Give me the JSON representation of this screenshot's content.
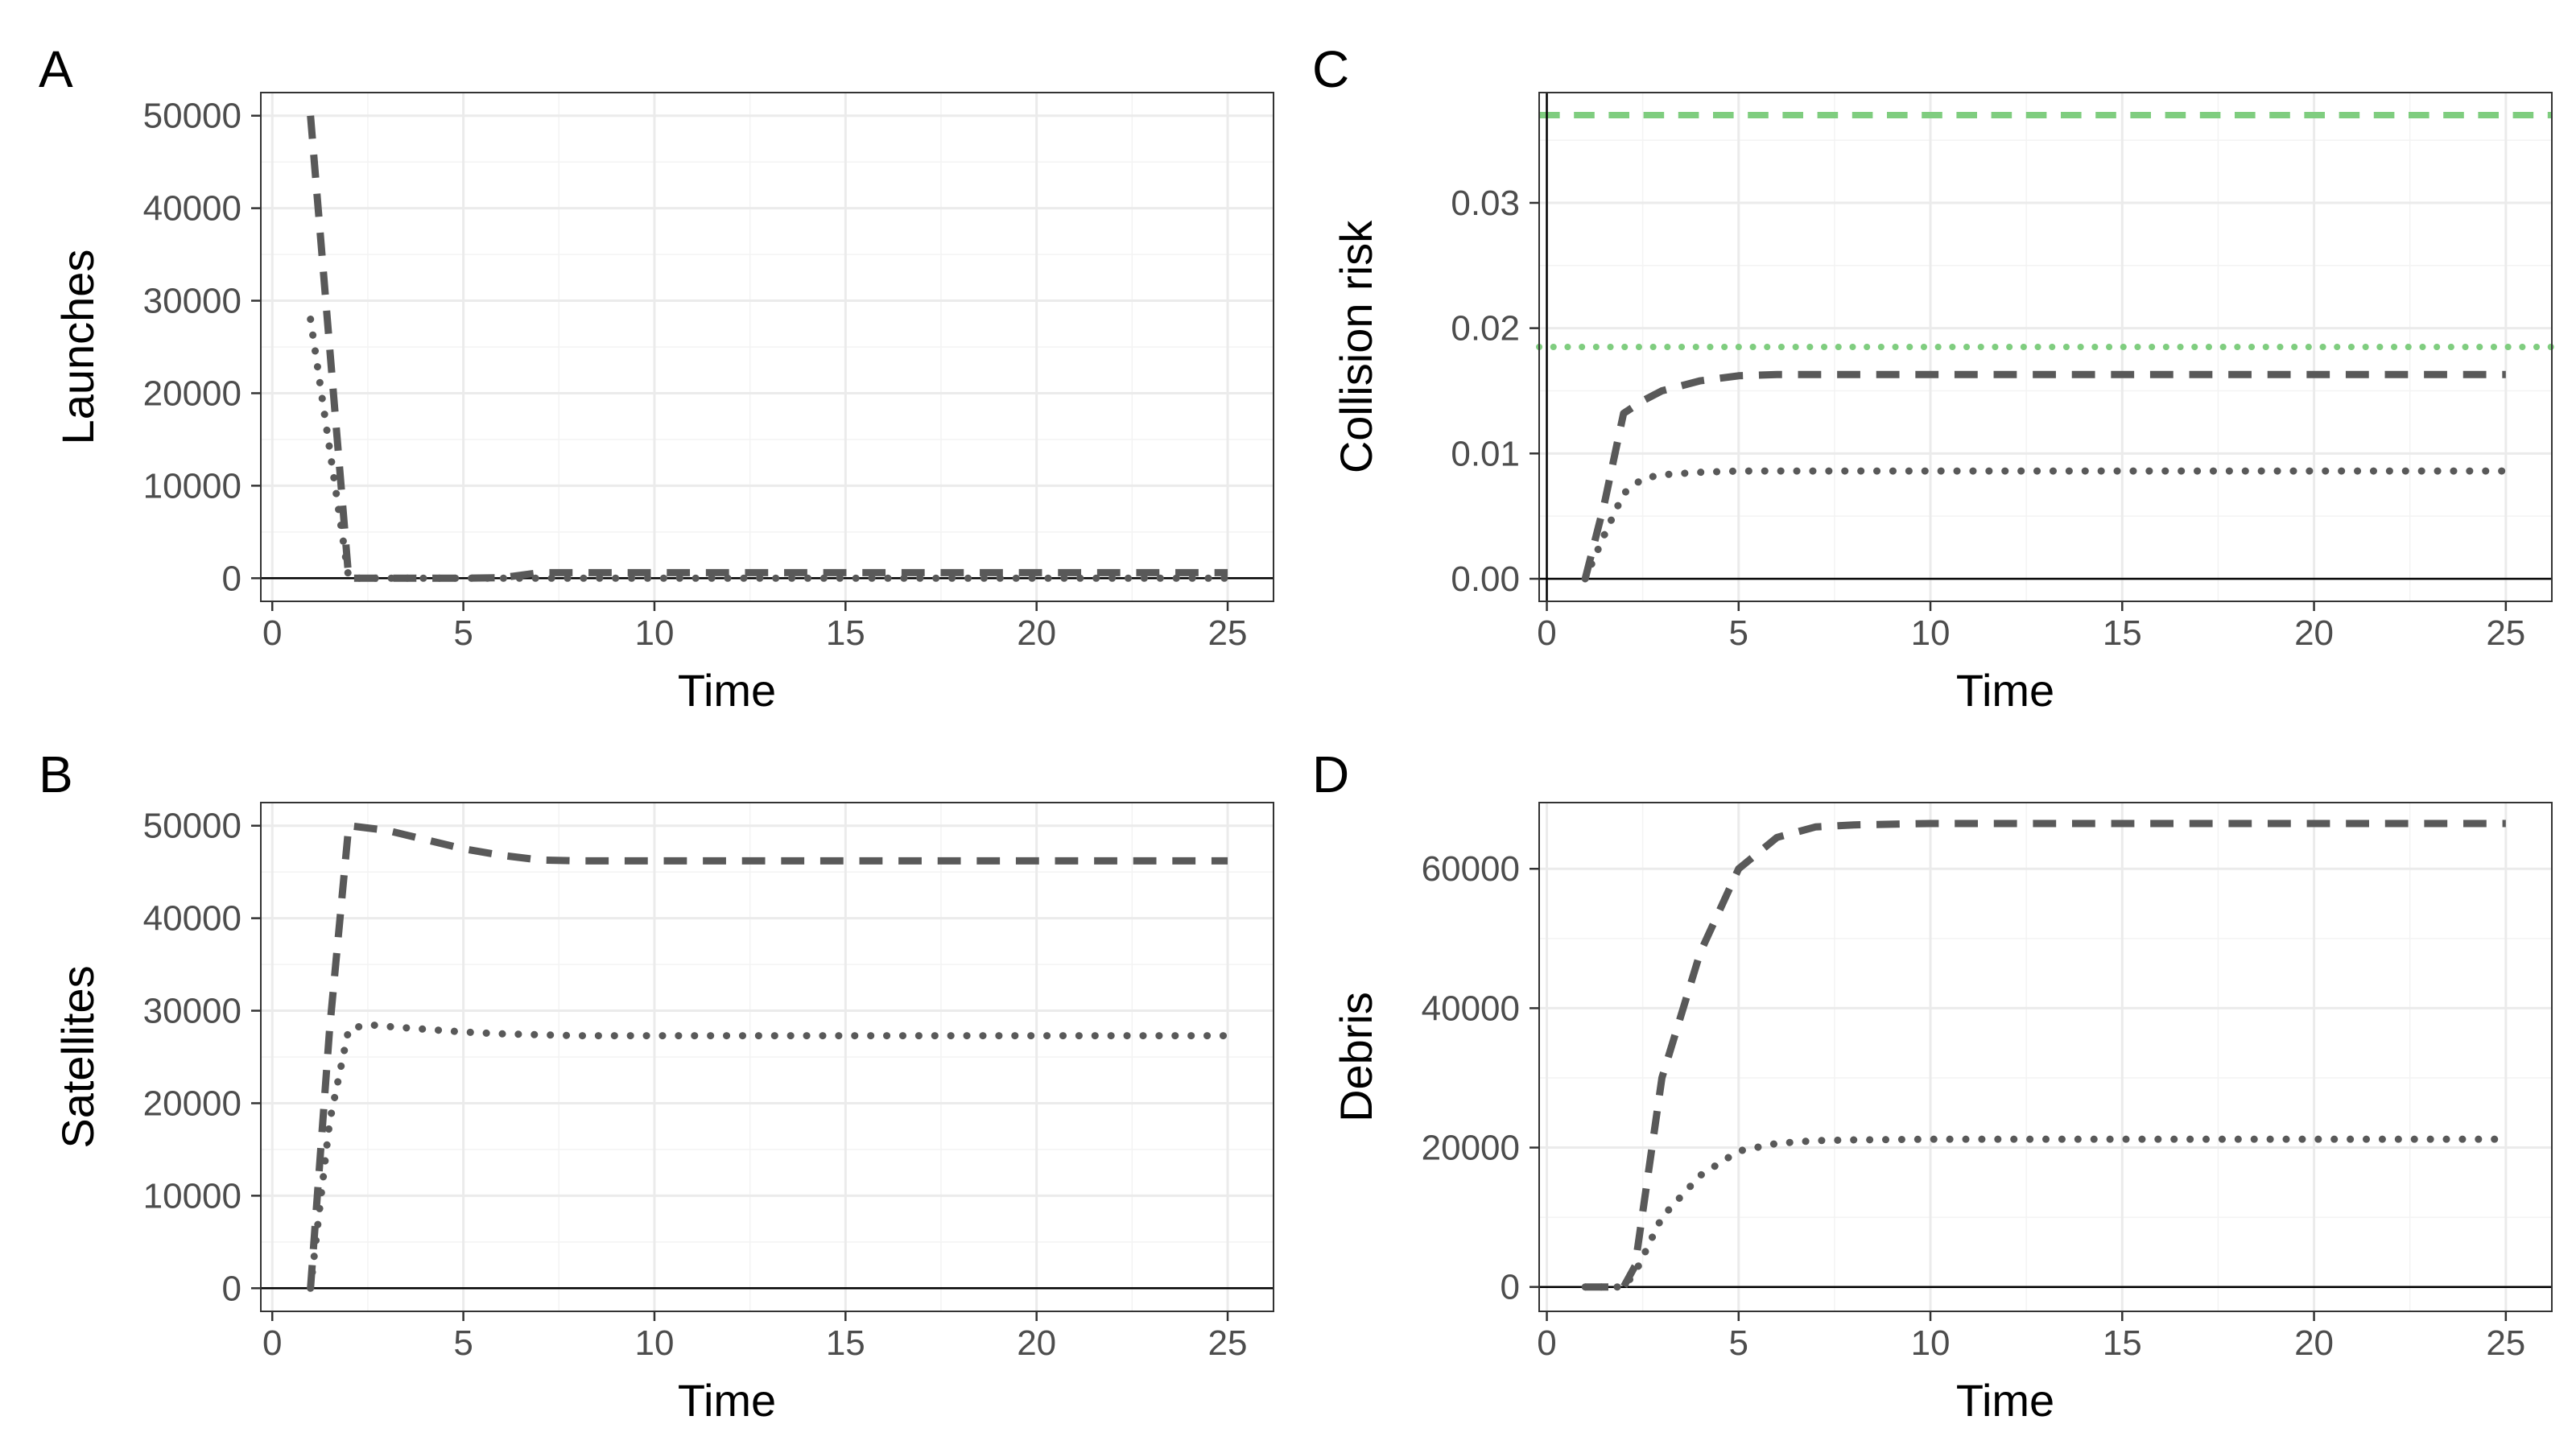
{
  "chart_data": [
    {
      "panel": "A",
      "type": "line",
      "xlabel": "Time",
      "ylabel": "Launches",
      "xlim": [
        -0.3,
        26.2
      ],
      "ylim": [
        -2500,
        52500
      ],
      "xticks": [
        0,
        5,
        10,
        15,
        20,
        25
      ],
      "yticks": [
        0,
        10000,
        20000,
        30000,
        40000,
        50000
      ],
      "ytick_labels": [
        "0",
        "10000",
        "20000",
        "30000",
        "40000",
        "50000"
      ],
      "hlines": [
        {
          "y": 0,
          "color": "#000000",
          "style": "solid"
        }
      ],
      "series": [
        {
          "name": "dashed",
          "style": "dashed",
          "color": "#595959",
          "x": [
            1,
            1.5,
            2,
            3,
            4,
            5,
            6,
            7,
            8,
            10,
            12,
            15,
            20,
            25
          ],
          "y": [
            50000,
            25000,
            0,
            0,
            0,
            0,
            50,
            600,
            600,
            600,
            600,
            600,
            600,
            600
          ]
        },
        {
          "name": "dotted",
          "style": "dotted",
          "color": "#595959",
          "x": [
            1,
            1.5,
            2,
            3,
            5,
            10,
            15,
            20,
            25
          ],
          "y": [
            28000,
            14000,
            0,
            0,
            0,
            0,
            0,
            0,
            0
          ]
        }
      ]
    },
    {
      "panel": "B",
      "type": "line",
      "xlabel": "Time",
      "ylabel": "Satellites",
      "xlim": [
        -0.3,
        26.2
      ],
      "ylim": [
        -2500,
        52500
      ],
      "xticks": [
        0,
        5,
        10,
        15,
        20,
        25
      ],
      "yticks": [
        0,
        10000,
        20000,
        30000,
        40000,
        50000
      ],
      "ytick_labels": [
        "0",
        "10000",
        "20000",
        "30000",
        "40000",
        "50000"
      ],
      "hlines": [
        {
          "y": 0,
          "color": "#000000",
          "style": "solid"
        }
      ],
      "series": [
        {
          "name": "dashed",
          "style": "dashed",
          "color": "#595959",
          "x": [
            1,
            1.5,
            2,
            3,
            4,
            5,
            6,
            7,
            8,
            10,
            15,
            20,
            25
          ],
          "y": [
            0,
            28000,
            50000,
            49500,
            48500,
            47500,
            46800,
            46300,
            46200,
            46200,
            46200,
            46200,
            46200
          ]
        },
        {
          "name": "dotted",
          "style": "dotted",
          "color": "#595959",
          "x": [
            1,
            1.5,
            2,
            2.5,
            3,
            4,
            5,
            6,
            7,
            8,
            10,
            15,
            20,
            25
          ],
          "y": [
            0,
            18000,
            28000,
            28500,
            28300,
            28000,
            27700,
            27500,
            27400,
            27300,
            27300,
            27300,
            27300,
            27300
          ]
        }
      ]
    },
    {
      "panel": "C",
      "type": "line",
      "xlabel": "Time",
      "ylabel": "Collision risk",
      "xlim": [
        -0.2,
        26.2
      ],
      "ylim": [
        -0.0018,
        0.0388
      ],
      "xticks": [
        0,
        5,
        10,
        15,
        20,
        25
      ],
      "yticks": [
        0,
        0.01,
        0.02,
        0.03
      ],
      "ytick_labels": [
        "0.00",
        "0.01",
        "0.02",
        "0.03"
      ],
      "hlines": [
        {
          "y": 0,
          "color": "#000000",
          "style": "solid"
        },
        {
          "y": 0.037,
          "color": "#7fcd7f",
          "style": "dashed"
        },
        {
          "y": 0.0185,
          "color": "#7fcd7f",
          "style": "dotted"
        }
      ],
      "vlines": [
        {
          "x": 0,
          "color": "#000000",
          "style": "solid"
        }
      ],
      "series": [
        {
          "name": "dashed",
          "style": "dashed",
          "color": "#595959",
          "x": [
            1,
            1.5,
            2,
            2.5,
            3,
            4,
            5,
            6,
            7,
            8,
            10,
            15,
            20,
            25
          ],
          "y": [
            0,
            0.006,
            0.0132,
            0.0142,
            0.015,
            0.0158,
            0.0162,
            0.0163,
            0.0163,
            0.0163,
            0.0163,
            0.0163,
            0.0163,
            0.0163
          ]
        },
        {
          "name": "dotted",
          "style": "dotted",
          "color": "#595959",
          "x": [
            1,
            1.5,
            2,
            2.5,
            3,
            4,
            5,
            7,
            10,
            15,
            20,
            25
          ],
          "y": [
            0,
            0.0035,
            0.0068,
            0.008,
            0.0083,
            0.0085,
            0.0086,
            0.0086,
            0.0086,
            0.0086,
            0.0086,
            0.0086
          ]
        }
      ]
    },
    {
      "panel": "D",
      "type": "line",
      "xlabel": "Time",
      "ylabel": "Debris",
      "xlim": [
        -0.2,
        26.2
      ],
      "ylim": [
        -3500,
        69500
      ],
      "xticks": [
        0,
        5,
        10,
        15,
        20,
        25
      ],
      "yticks": [
        0,
        20000,
        40000,
        60000
      ],
      "ytick_labels": [
        "0",
        "20000",
        "40000",
        "60000"
      ],
      "hlines": [
        {
          "y": 0,
          "color": "#000000",
          "style": "solid"
        }
      ],
      "series": [
        {
          "name": "dashed",
          "style": "dashed",
          "color": "#595959",
          "x": [
            1,
            2,
            2.3,
            3,
            4,
            5,
            6,
            7,
            8,
            10,
            15,
            20,
            25
          ],
          "y": [
            0,
            0,
            3000,
            30000,
            48000,
            60000,
            64500,
            66000,
            66300,
            66500,
            66500,
            66500,
            66500
          ]
        },
        {
          "name": "dotted",
          "style": "dotted",
          "color": "#595959",
          "x": [
            1,
            2,
            2.3,
            3,
            4,
            5,
            6,
            7,
            8,
            10,
            15,
            20,
            25
          ],
          "y": [
            0,
            0,
            2000,
            10000,
            16000,
            19500,
            20600,
            21000,
            21100,
            21200,
            21200,
            21200,
            21200
          ]
        }
      ]
    }
  ]
}
